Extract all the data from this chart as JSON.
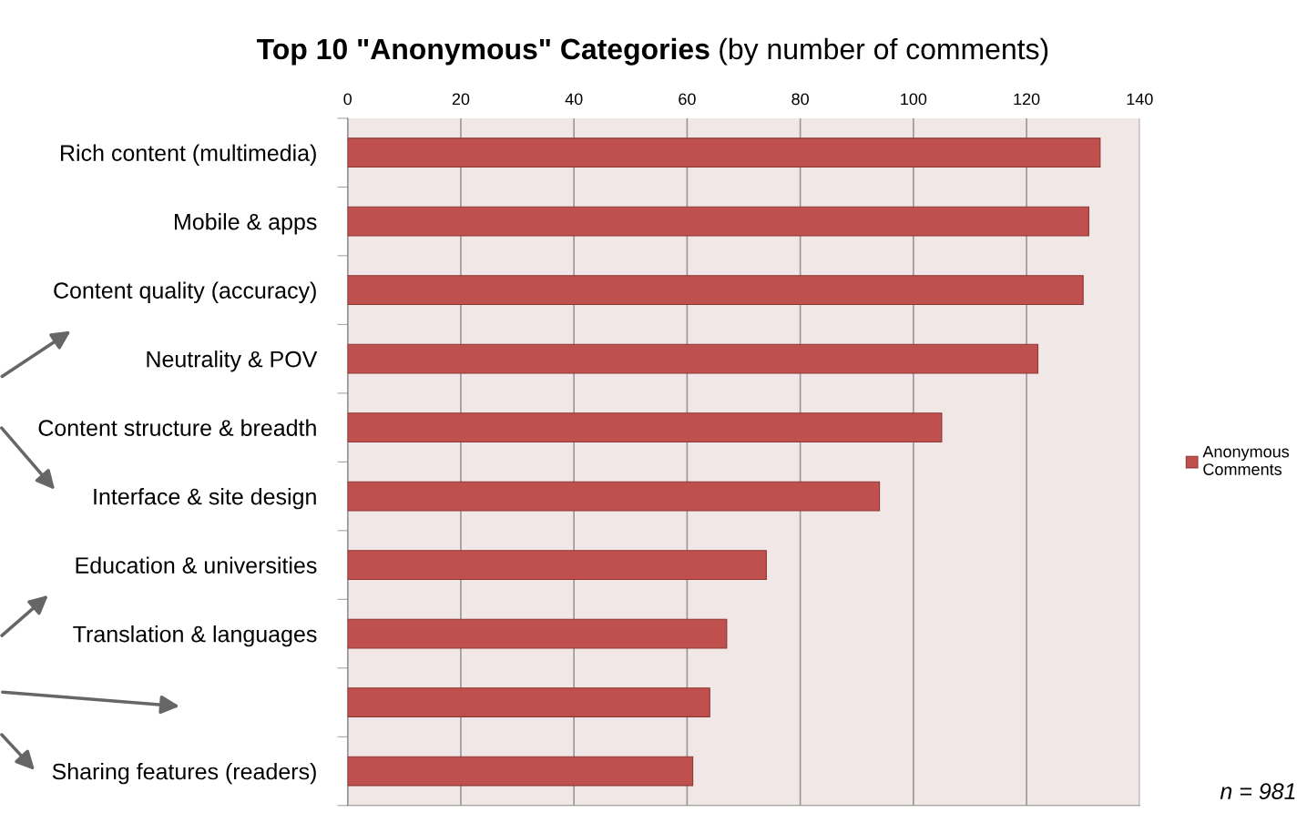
{
  "chart_data": {
    "type": "bar",
    "orientation": "horizontal",
    "title": "Top 10 \"Anonymous\" Categories",
    "subtitle": "(by number of comments)",
    "categories": [
      "Rich content (multimedia)",
      "Mobile & apps",
      "Content quality (accuracy)",
      "Neutrality & POV",
      "Content structure & breadth",
      "Interface & site design",
      "Education & universities",
      "Translation & languages",
      null,
      "Sharing features (readers)"
    ],
    "series": [
      {
        "name": "Anonymous Comments",
        "color": "#c0504d",
        "values": [
          133,
          131,
          130,
          122,
          105,
          94,
          74,
          67,
          64,
          61
        ]
      }
    ],
    "xlim": [
      0,
      140
    ],
    "xticks": [
      0,
      20,
      40,
      60,
      80,
      100,
      120,
      140
    ],
    "grid": "x",
    "legend": "right",
    "annotations": [
      "n = 981"
    ]
  }
}
